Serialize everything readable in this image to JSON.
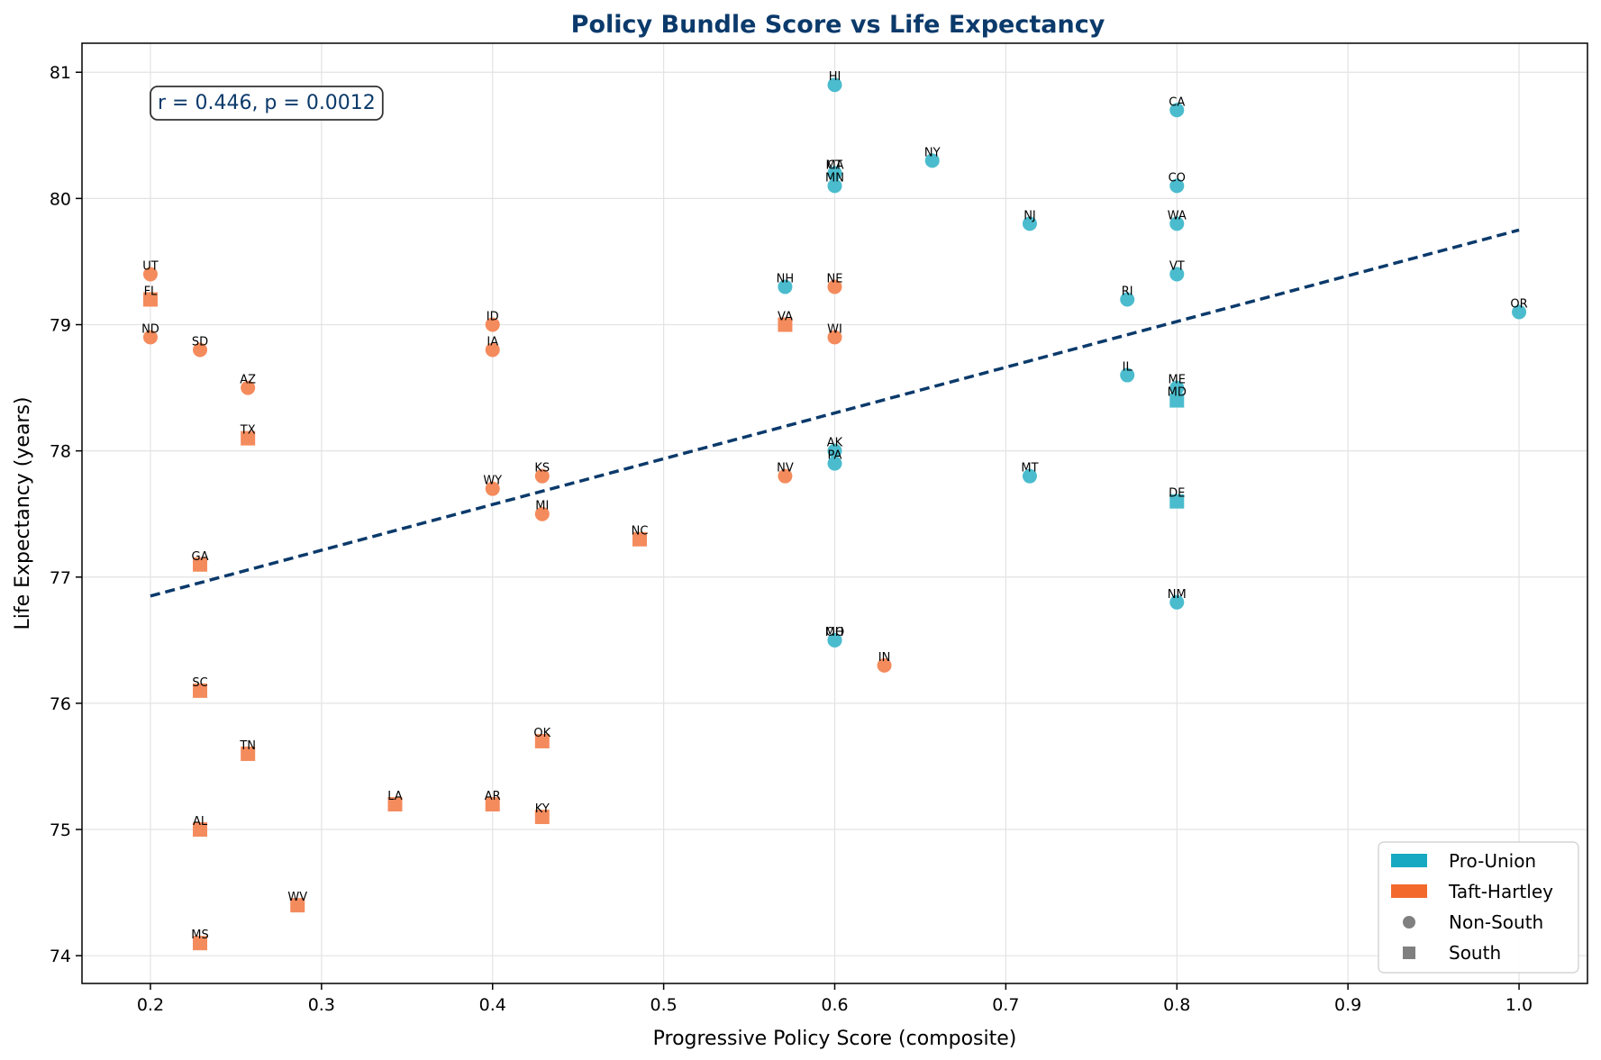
{
  "chart_data": {
    "type": "scatter",
    "title": "Policy Bundle Score vs Life Expectancy",
    "xlabel": "Progressive Policy Score (composite)",
    "ylabel": "Life Expectancy (years)",
    "xlim": [
      0.16,
      1.04
    ],
    "ylim": [
      73.78,
      81.23
    ],
    "x_ticks": [
      0.2,
      0.3,
      0.4,
      0.5,
      0.6,
      0.7,
      0.8,
      0.9,
      1.0
    ],
    "x_tick_labels": [
      "0.2",
      "0.3",
      "0.4",
      "0.5",
      "0.6",
      "0.7",
      "0.8",
      "0.9",
      "1.0"
    ],
    "y_ticks": [
      74,
      75,
      76,
      77,
      78,
      79,
      80,
      81
    ],
    "y_tick_labels": [
      "74",
      "75",
      "76",
      "77",
      "78",
      "79",
      "80",
      "81"
    ],
    "grid": true,
    "annotation": "r = 0.446, p = 0.0012",
    "trendline": {
      "x": [
        0.2,
        1.0
      ],
      "y": [
        76.85,
        79.75
      ]
    },
    "colors": {
      "pro_union": "#17a9c1",
      "taft_hartley": "#f2692b",
      "pro_union_point": "#4bbccd",
      "taft_hartley_point": "#f48b5d",
      "title": "#0b3a6b",
      "trendline": "#0b3a6b"
    },
    "legend": {
      "placement": "bottom-right",
      "entries": [
        {
          "label": "Pro-Union",
          "kind": "patch",
          "color": "#17a9c1"
        },
        {
          "label": "Taft-Hartley",
          "kind": "patch",
          "color": "#f2692b"
        },
        {
          "label": "Non-South",
          "kind": "circle",
          "color": "#808080"
        },
        {
          "label": "South",
          "kind": "square",
          "color": "#808080"
        }
      ]
    },
    "points": [
      {
        "label": "HI",
        "x": 0.6,
        "y": 80.9,
        "group": "Pro-Union",
        "region": "Non-South"
      },
      {
        "label": "CA",
        "x": 0.8,
        "y": 80.7,
        "group": "Pro-Union",
        "region": "Non-South"
      },
      {
        "label": "NY",
        "x": 0.657,
        "y": 80.3,
        "group": "Pro-Union",
        "region": "Non-South"
      },
      {
        "label": "MA",
        "x": 0.6,
        "y": 80.2,
        "group": "Pro-Union",
        "region": "Non-South"
      },
      {
        "label": "CT",
        "x": 0.6,
        "y": 80.2,
        "group": "Pro-Union",
        "region": "Non-South"
      },
      {
        "label": "MN",
        "x": 0.6,
        "y": 80.1,
        "group": "Pro-Union",
        "region": "Non-South"
      },
      {
        "label": "CO",
        "x": 0.8,
        "y": 80.1,
        "group": "Pro-Union",
        "region": "Non-South"
      },
      {
        "label": "NJ",
        "x": 0.714,
        "y": 79.8,
        "group": "Pro-Union",
        "region": "Non-South"
      },
      {
        "label": "WA",
        "x": 0.8,
        "y": 79.8,
        "group": "Pro-Union",
        "region": "Non-South"
      },
      {
        "label": "VT",
        "x": 0.8,
        "y": 79.4,
        "group": "Pro-Union",
        "region": "Non-South"
      },
      {
        "label": "NH",
        "x": 0.571,
        "y": 79.3,
        "group": "Pro-Union",
        "region": "Non-South"
      },
      {
        "label": "RI",
        "x": 0.771,
        "y": 79.2,
        "group": "Pro-Union",
        "region": "Non-South"
      },
      {
        "label": "OR",
        "x": 1.0,
        "y": 79.1,
        "group": "Pro-Union",
        "region": "Non-South"
      },
      {
        "label": "IL",
        "x": 0.771,
        "y": 78.6,
        "group": "Pro-Union",
        "region": "Non-South"
      },
      {
        "label": "ME",
        "x": 0.8,
        "y": 78.5,
        "group": "Pro-Union",
        "region": "Non-South"
      },
      {
        "label": "MD",
        "x": 0.8,
        "y": 78.4,
        "group": "Pro-Union",
        "region": "South"
      },
      {
        "label": "AK",
        "x": 0.6,
        "y": 78.0,
        "group": "Pro-Union",
        "region": "Non-South"
      },
      {
        "label": "PA",
        "x": 0.6,
        "y": 77.9,
        "group": "Pro-Union",
        "region": "Non-South"
      },
      {
        "label": "MT",
        "x": 0.714,
        "y": 77.8,
        "group": "Pro-Union",
        "region": "Non-South"
      },
      {
        "label": "DE",
        "x": 0.8,
        "y": 77.6,
        "group": "Pro-Union",
        "region": "South"
      },
      {
        "label": "NM",
        "x": 0.8,
        "y": 76.8,
        "group": "Pro-Union",
        "region": "Non-South"
      },
      {
        "label": "MO",
        "x": 0.6,
        "y": 76.5,
        "group": "Pro-Union",
        "region": "Non-South"
      },
      {
        "label": "OH",
        "x": 0.6,
        "y": 76.5,
        "group": "Pro-Union",
        "region": "Non-South"
      },
      {
        "label": "UT",
        "x": 0.2,
        "y": 79.4,
        "group": "Taft-Hartley",
        "region": "Non-South"
      },
      {
        "label": "FL",
        "x": 0.2,
        "y": 79.2,
        "group": "Taft-Hartley",
        "region": "South"
      },
      {
        "label": "ND",
        "x": 0.2,
        "y": 78.9,
        "group": "Taft-Hartley",
        "region": "Non-South"
      },
      {
        "label": "SD",
        "x": 0.229,
        "y": 78.8,
        "group": "Taft-Hartley",
        "region": "Non-South"
      },
      {
        "label": "AZ",
        "x": 0.257,
        "y": 78.5,
        "group": "Taft-Hartley",
        "region": "Non-South"
      },
      {
        "label": "TX",
        "x": 0.257,
        "y": 78.1,
        "group": "Taft-Hartley",
        "region": "South"
      },
      {
        "label": "ID",
        "x": 0.4,
        "y": 79.0,
        "group": "Taft-Hartley",
        "region": "Non-South"
      },
      {
        "label": "IA",
        "x": 0.4,
        "y": 78.8,
        "group": "Taft-Hartley",
        "region": "Non-South"
      },
      {
        "label": "WY",
        "x": 0.4,
        "y": 77.7,
        "group": "Taft-Hartley",
        "region": "Non-South"
      },
      {
        "label": "KS",
        "x": 0.429,
        "y": 77.8,
        "group": "Taft-Hartley",
        "region": "Non-South"
      },
      {
        "label": "MI",
        "x": 0.429,
        "y": 77.5,
        "group": "Taft-Hartley",
        "region": "Non-South"
      },
      {
        "label": "NC",
        "x": 0.486,
        "y": 77.3,
        "group": "Taft-Hartley",
        "region": "South"
      },
      {
        "label": "VA",
        "x": 0.571,
        "y": 79.0,
        "group": "Taft-Hartley",
        "region": "South"
      },
      {
        "label": "NE",
        "x": 0.6,
        "y": 79.3,
        "group": "Taft-Hartley",
        "region": "Non-South"
      },
      {
        "label": "WI",
        "x": 0.6,
        "y": 78.9,
        "group": "Taft-Hartley",
        "region": "Non-South"
      },
      {
        "label": "NV",
        "x": 0.571,
        "y": 77.8,
        "group": "Taft-Hartley",
        "region": "Non-South"
      },
      {
        "label": "IN",
        "x": 0.629,
        "y": 76.3,
        "group": "Taft-Hartley",
        "region": "Non-South"
      },
      {
        "label": "GA",
        "x": 0.229,
        "y": 77.1,
        "group": "Taft-Hartley",
        "region": "South"
      },
      {
        "label": "SC",
        "x": 0.229,
        "y": 76.1,
        "group": "Taft-Hartley",
        "region": "South"
      },
      {
        "label": "TN",
        "x": 0.257,
        "y": 75.6,
        "group": "Taft-Hartley",
        "region": "South"
      },
      {
        "label": "OK",
        "x": 0.429,
        "y": 75.7,
        "group": "Taft-Hartley",
        "region": "South"
      },
      {
        "label": "LA",
        "x": 0.343,
        "y": 75.2,
        "group": "Taft-Hartley",
        "region": "South"
      },
      {
        "label": "AR",
        "x": 0.4,
        "y": 75.2,
        "group": "Taft-Hartley",
        "region": "South"
      },
      {
        "label": "KY",
        "x": 0.429,
        "y": 75.1,
        "group": "Taft-Hartley",
        "region": "South"
      },
      {
        "label": "AL",
        "x": 0.229,
        "y": 75.0,
        "group": "Taft-Hartley",
        "region": "South"
      },
      {
        "label": "WV",
        "x": 0.286,
        "y": 74.4,
        "group": "Taft-Hartley",
        "region": "South"
      },
      {
        "label": "MS",
        "x": 0.229,
        "y": 74.1,
        "group": "Taft-Hartley",
        "region": "South"
      }
    ]
  }
}
